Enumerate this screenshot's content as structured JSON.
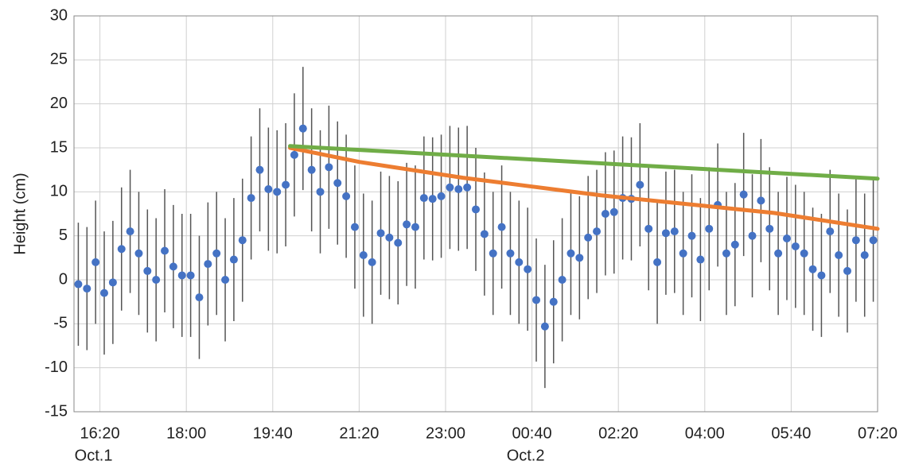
{
  "chart_data": {
    "type": "scatter",
    "y_label": "Height (cm)",
    "xlim": [
      950,
      1880
    ],
    "xticks": [
      {
        "value": 980,
        "label": "16:20"
      },
      {
        "value": 1080,
        "label": "18:00"
      },
      {
        "value": 1180,
        "label": "19:40"
      },
      {
        "value": 1280,
        "label": "21:20"
      },
      {
        "value": 1380,
        "label": "23:00"
      },
      {
        "value": 1480,
        "label": "00:40"
      },
      {
        "value": 1580,
        "label": "02:20"
      },
      {
        "value": 1680,
        "label": "04:00"
      },
      {
        "value": 1780,
        "label": "05:40"
      },
      {
        "value": 1880,
        "label": "07:20"
      }
    ],
    "date_labels": [
      {
        "value": 980,
        "label": "Oct.1"
      },
      {
        "value": 1480,
        "label": "Oct.2"
      }
    ],
    "ylim": [
      -15,
      30
    ],
    "yticks": [
      -15,
      -10,
      -5,
      0,
      5,
      10,
      15,
      20,
      25,
      30
    ],
    "grid": true,
    "series": [
      {
        "type": "errorbar",
        "color": "#4472c4",
        "error_color": "#555555",
        "x": [
          955,
          965,
          975,
          985,
          995,
          1005,
          1015,
          1025,
          1035,
          1045,
          1055,
          1065,
          1075,
          1085,
          1095,
          1105,
          1115,
          1125,
          1135,
          1145,
          1155,
          1165,
          1175,
          1185,
          1195,
          1205,
          1215,
          1225,
          1235,
          1245,
          1255,
          1265,
          1275,
          1285,
          1295,
          1305,
          1315,
          1325,
          1335,
          1345,
          1355,
          1365,
          1375,
          1385,
          1395,
          1405,
          1415,
          1425,
          1435,
          1445,
          1455,
          1465,
          1475,
          1485,
          1495,
          1505,
          1515,
          1525,
          1535,
          1545,
          1555,
          1565,
          1575,
          1585,
          1595,
          1605,
          1615,
          1625,
          1635,
          1645,
          1655,
          1665,
          1675,
          1685,
          1695,
          1705,
          1715,
          1725,
          1735,
          1745,
          1755,
          1765,
          1775,
          1785,
          1795,
          1805,
          1815,
          1825,
          1835,
          1845,
          1855,
          1865,
          1875
        ],
        "values": [
          -0.5,
          -1,
          2,
          -1.5,
          -0.3,
          3.5,
          5.5,
          3,
          1,
          0,
          3.3,
          1.5,
          0.5,
          0.5,
          -2,
          1.8,
          3,
          0,
          2.3,
          4.5,
          9.3,
          12.5,
          10.3,
          10,
          10.8,
          14.2,
          17.2,
          12.5,
          10,
          12.8,
          11,
          9.5,
          6,
          2.8,
          2,
          5.3,
          4.8,
          4.2,
          6.3,
          6,
          9.3,
          9.2,
          9.5,
          10.5,
          10.3,
          10.5,
          8,
          5.2,
          3,
          6,
          3,
          2,
          1.2,
          -2.3,
          -5.3,
          -2.5,
          0,
          3,
          2.5,
          4.8,
          5.5,
          7.5,
          7.7,
          9.3,
          9.2,
          10.8,
          5.8,
          2,
          5.3,
          5.5,
          3,
          5,
          2.3,
          5.8,
          8.5,
          3,
          4,
          9.7,
          5,
          9,
          5.8,
          3,
          4.7,
          3.8,
          3,
          1.2,
          0.5,
          5.5,
          2.8,
          1,
          4.5,
          2.8,
          4.5
        ],
        "errors": [
          7,
          7,
          7,
          7,
          7,
          7,
          7,
          7,
          7,
          7,
          7,
          7,
          7,
          7,
          7,
          7,
          7,
          7,
          7,
          7,
          7,
          7,
          7,
          7,
          7,
          7,
          7,
          7,
          7,
          7,
          7,
          7,
          7,
          7,
          7,
          7,
          7,
          7,
          7,
          7,
          7,
          7,
          7,
          7,
          7,
          7,
          7,
          7,
          7,
          7,
          7,
          7,
          7,
          7,
          7,
          7,
          7,
          7,
          7,
          7,
          7,
          7,
          7,
          7,
          7,
          7,
          7,
          7,
          7,
          7,
          7,
          7,
          7,
          7,
          7,
          7,
          7,
          7,
          7,
          7,
          7,
          7,
          7,
          7,
          7,
          7,
          7,
          7,
          7,
          7,
          7,
          7,
          7
        ]
      },
      {
        "type": "line",
        "color": "#ed7d31",
        "x": [
          1200,
          1240,
          1280,
          1320,
          1360,
          1400,
          1440,
          1480,
          1520,
          1560,
          1600,
          1640,
          1680,
          1720,
          1760,
          1800,
          1840,
          1880
        ],
        "values": [
          15,
          14.2,
          13.4,
          12.8,
          12.2,
          11.6,
          11.1,
          10.6,
          10.1,
          9.6,
          9.2,
          8.8,
          8.4,
          8.0,
          7.6,
          7.0,
          6.4,
          5.8
        ]
      },
      {
        "type": "line",
        "color": "#70ad47",
        "x": [
          1200,
          1880
        ],
        "values": [
          15.2,
          11.5
        ]
      }
    ]
  }
}
